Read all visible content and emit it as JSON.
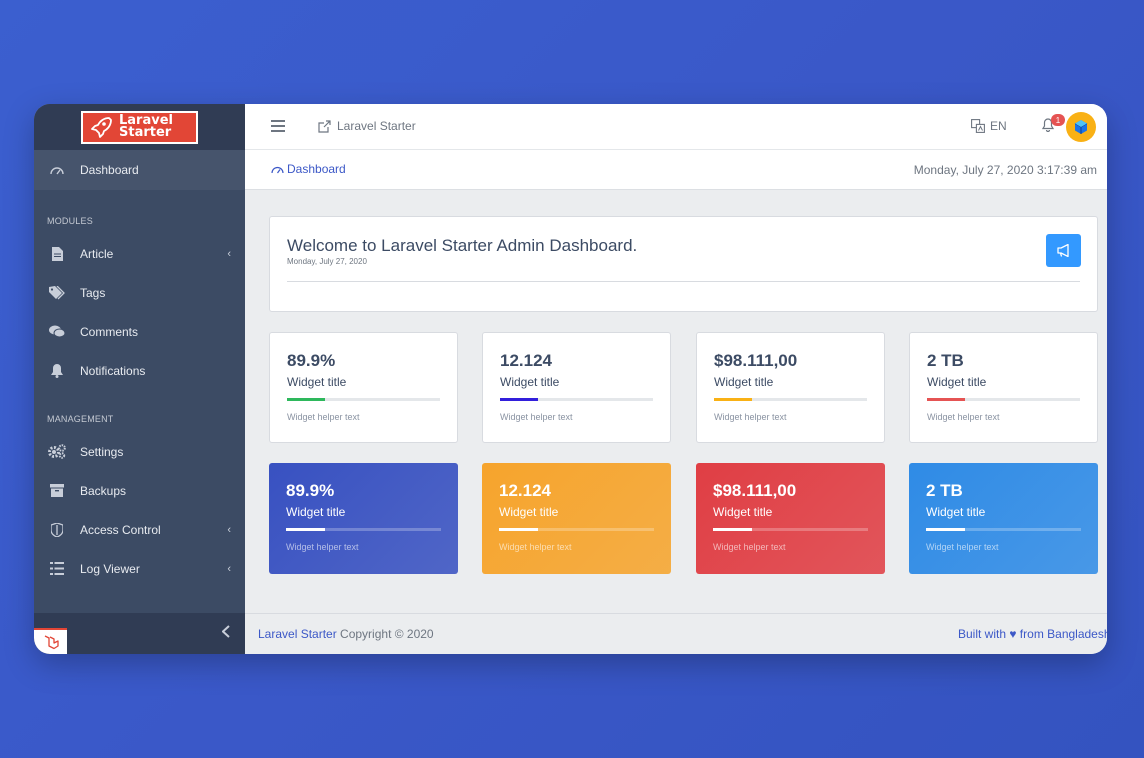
{
  "brand": {
    "line1": "Laravel",
    "line2": "Starter"
  },
  "sidebar": {
    "dashboard": "Dashboard",
    "section_modules": "MODULES",
    "modules": [
      {
        "label": "Article",
        "icon": "file-icon",
        "has_caret": true
      },
      {
        "label": "Tags",
        "icon": "tags-icon",
        "has_caret": false
      },
      {
        "label": "Comments",
        "icon": "comments-icon",
        "has_caret": false
      },
      {
        "label": "Notifications",
        "icon": "bell-icon",
        "has_caret": false
      }
    ],
    "section_management": "MANAGEMENT",
    "management": [
      {
        "label": "Settings",
        "icon": "gears-icon",
        "has_caret": false
      },
      {
        "label": "Backups",
        "icon": "archive-icon",
        "has_caret": false
      },
      {
        "label": "Access Control",
        "icon": "shield-icon",
        "has_caret": true
      },
      {
        "label": "Log Viewer",
        "icon": "list-icon",
        "has_caret": true
      }
    ]
  },
  "header": {
    "app_link": "Laravel Starter",
    "lang": "EN",
    "notification_count": "1"
  },
  "subheader": {
    "breadcrumb": "Dashboard",
    "datetime": "Monday, July 27, 2020 3:17:39 am"
  },
  "welcome": {
    "title": "Welcome to Laravel Starter Admin Dashboard.",
    "date": "Monday, July 27, 2020"
  },
  "widgets_light": [
    {
      "value": "89.9%",
      "title": "Widget title",
      "helper": "Widget helper text",
      "color": "#2eb85c",
      "progress": 0.25
    },
    {
      "value": "12.124",
      "title": "Widget title",
      "helper": "Widget helper text",
      "color": "#321fdb",
      "progress": 0.25
    },
    {
      "value": "$98.111,00",
      "title": "Widget title",
      "helper": "Widget helper text",
      "color": "#f9b115",
      "progress": 0.25
    },
    {
      "value": "2 TB",
      "title": "Widget title",
      "helper": "Widget helper text",
      "color": "#e55353",
      "progress": 0.25
    }
  ],
  "widgets_dark": [
    {
      "value": "89.9%",
      "title": "Widget title",
      "helper": "Widget helper text",
      "bg": "#3851c1",
      "progress": 0.25
    },
    {
      "value": "12.124",
      "title": "Widget title",
      "helper": "Widget helper text",
      "bg": "#f6a42c",
      "progress": 0.25
    },
    {
      "value": "$98.111,00",
      "title": "Widget title",
      "helper": "Widget helper text",
      "bg": "#e03e44",
      "progress": 0.25
    },
    {
      "value": "2 TB",
      "title": "Widget title",
      "helper": "Widget helper text",
      "bg": "#2f8be6",
      "progress": 0.25
    }
  ],
  "footer": {
    "brand": "Laravel Starter",
    "copyright": "Copyright © 2020",
    "built": "Built with ♥ from Bangladesh"
  }
}
